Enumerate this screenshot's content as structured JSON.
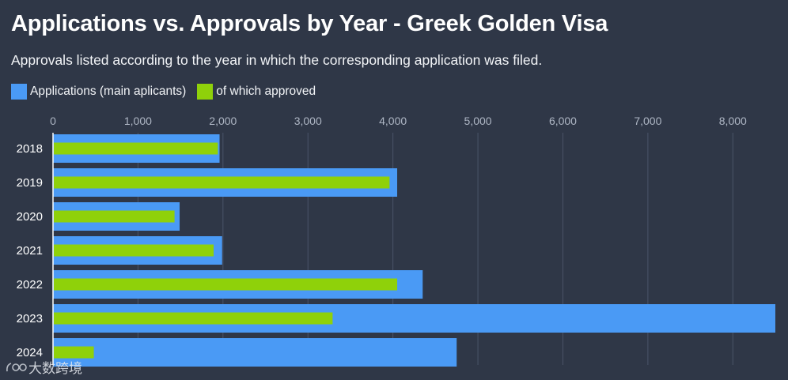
{
  "header": {
    "title": "Applications vs. Approvals by Year - Greek Golden Visa",
    "subtitle": "Approvals listed according to the year in which the corresponding application was filed."
  },
  "legend": [
    {
      "label": "Applications (main aplicants)",
      "color": "#4a9af5"
    },
    {
      "label": "of which approved",
      "color": "#8fd10a"
    }
  ],
  "chart_data": {
    "type": "bar",
    "orientation": "horizontal",
    "title": "Applications vs. Approvals by Year - Greek Golden Visa",
    "subtitle": "Approvals listed according to the year in which the corresponding application was filed.",
    "categories": [
      "2018",
      "2019",
      "2020",
      "2021",
      "2022",
      "2023",
      "2024"
    ],
    "series": [
      {
        "name": "Applications (main aplicants)",
        "color": "#4a9af5",
        "values": [
          1960,
          4050,
          1490,
          1990,
          4350,
          8500,
          4750
        ]
      },
      {
        "name": "of which approved",
        "color": "#8fd10a",
        "values": [
          1940,
          3960,
          1430,
          1890,
          4050,
          3290,
          480
        ]
      }
    ],
    "xlim": [
      0,
      8500
    ],
    "xticks": [
      0,
      1000,
      2000,
      3000,
      4000,
      5000,
      6000,
      7000,
      8000
    ],
    "xtick_labels": [
      "0",
      "1,000",
      "2,000",
      "3,000",
      "4,000",
      "5,000",
      "6,000",
      "7,000",
      "8,000"
    ],
    "axis_position": "top",
    "grid": true,
    "legend_position": "top-left"
  },
  "watermark": {
    "text": "大数跨境",
    "icon": "watermark-logo-icon"
  }
}
